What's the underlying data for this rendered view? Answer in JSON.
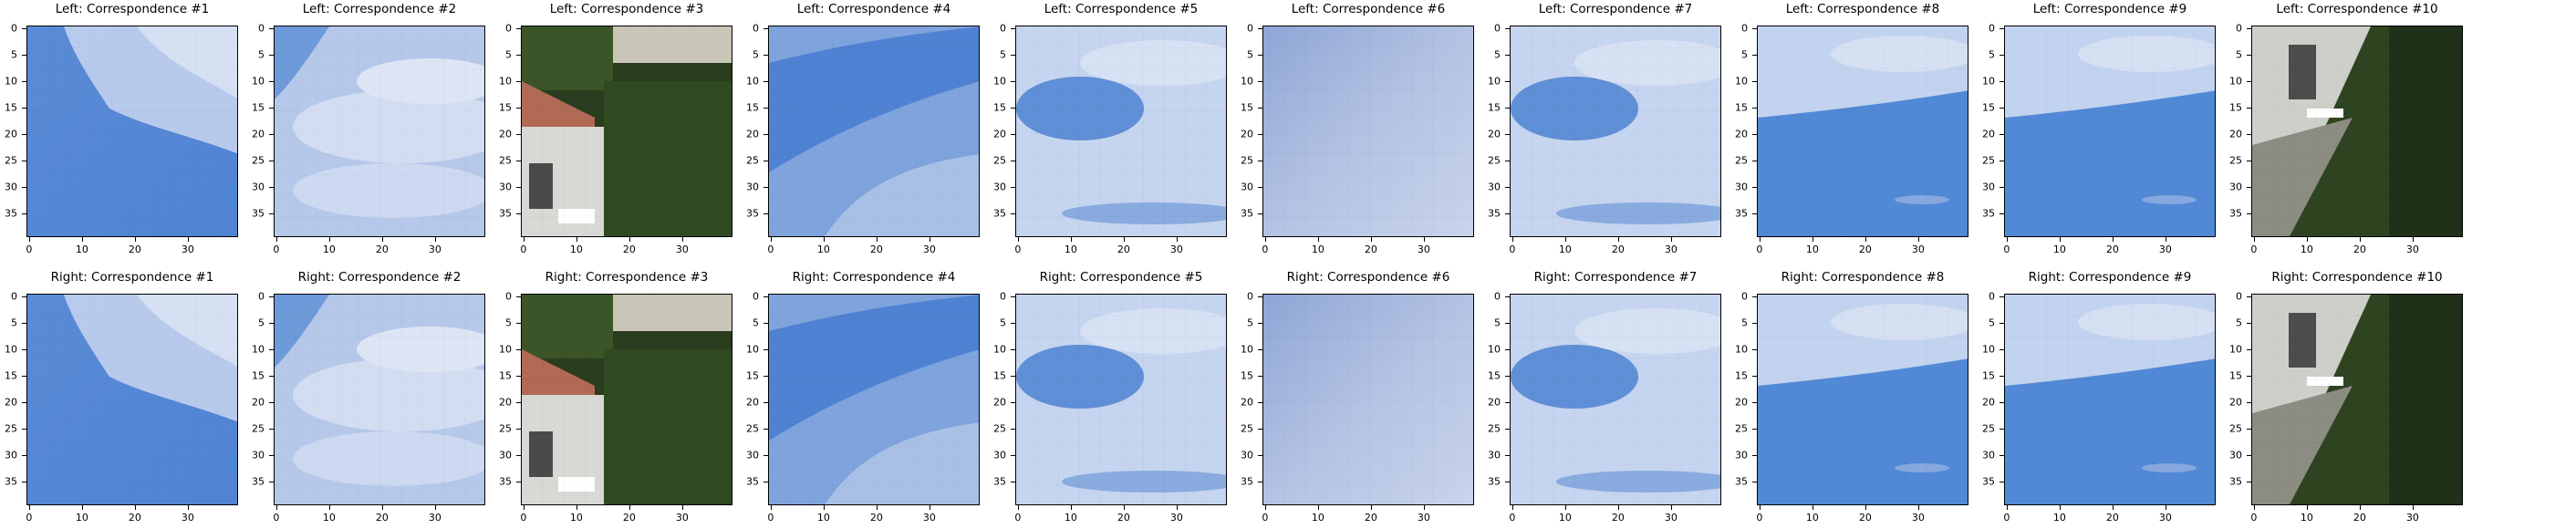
{
  "figure": {
    "rows": [
      {
        "name": "left",
        "panels": [
          {
            "title": "Left: Correspondence #1",
            "scene": "sky-cloud-top-right"
          },
          {
            "title": "Left: Correspondence #2",
            "scene": "sky-light-cloud"
          },
          {
            "title": "Left: Correspondence #3",
            "scene": "building-tree"
          },
          {
            "title": "Left: Correspondence #4",
            "scene": "sky-blue-streak"
          },
          {
            "title": "Left: Correspondence #5",
            "scene": "sky-light-streak"
          },
          {
            "title": "Left: Correspondence #6",
            "scene": "sky-overcast"
          },
          {
            "title": "Left: Correspondence #7",
            "scene": "sky-light-streak"
          },
          {
            "title": "Left: Correspondence #8",
            "scene": "sky-cloud-top-blue-bottom"
          },
          {
            "title": "Left: Correspondence #9",
            "scene": "sky-cloud-top-blue-bottom"
          },
          {
            "title": "Left: Correspondence #10",
            "scene": "tree-building"
          }
        ]
      },
      {
        "name": "right",
        "panels": [
          {
            "title": "Right: Correspondence #1",
            "scene": "sky-cloud-top-right"
          },
          {
            "title": "Right: Correspondence #2",
            "scene": "sky-light-cloud"
          },
          {
            "title": "Right: Correspondence #3",
            "scene": "building-tree"
          },
          {
            "title": "Right: Correspondence #4",
            "scene": "sky-blue-streak"
          },
          {
            "title": "Right: Correspondence #5",
            "scene": "sky-light-streak"
          },
          {
            "title": "Right: Correspondence #6",
            "scene": "sky-overcast"
          },
          {
            "title": "Right: Correspondence #7",
            "scene": "sky-light-streak"
          },
          {
            "title": "Right: Correspondence #8",
            "scene": "sky-cloud-top-blue-bottom"
          },
          {
            "title": "Right: Correspondence #9",
            "scene": "sky-cloud-top-blue-bottom"
          },
          {
            "title": "Right: Correspondence #10",
            "scene": "tree-building"
          }
        ]
      }
    ],
    "y_ticks": [
      "0",
      "5",
      "10",
      "15",
      "20",
      "25",
      "30",
      "35"
    ],
    "x_ticks": [
      "0",
      "10",
      "20",
      "30"
    ],
    "colors": {
      "sky_blue": "#4f84d3",
      "sky_light": "#c7d5ee",
      "sky_overcast": "#a9b9dd",
      "tree_dark": "#2a3d1e",
      "building_light": "#d8d8d4",
      "roof": "#b06a55"
    }
  }
}
